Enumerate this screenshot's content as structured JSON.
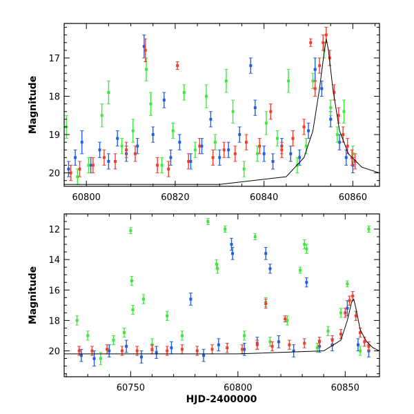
{
  "chart_data": [
    {
      "type": "scatter",
      "panel": "top",
      "xlabel": "",
      "ylabel": "Magnitude",
      "xlim": [
        60795,
        60866
      ],
      "ylim": [
        20.35,
        16.1
      ],
      "y_inverted": true,
      "x_ticks": [
        60800,
        60820,
        60840,
        60860
      ],
      "y_ticks": [
        17,
        18,
        19,
        20
      ],
      "series": [
        {
          "color": "#1f5fe0",
          "values": [
            [
              60796.0,
              19.9,
              0.2
            ],
            [
              60797.5,
              19.6,
              0.2
            ],
            [
              60799.0,
              19.2,
              0.3
            ],
            [
              60801.0,
              19.8,
              0.2
            ],
            [
              60803.0,
              19.4,
              0.2
            ],
            [
              60805.0,
              19.7,
              0.2
            ],
            [
              60807.0,
              19.1,
              0.2
            ],
            [
              60809.0,
              19.5,
              0.2
            ],
            [
              60811.5,
              19.3,
              0.2
            ],
            [
              60813.0,
              16.7,
              0.3
            ],
            [
              60815.0,
              19.0,
              0.2
            ],
            [
              60817.5,
              18.1,
              0.2
            ],
            [
              60819.0,
              19.6,
              0.2
            ],
            [
              60821.0,
              19.2,
              0.2
            ],
            [
              60823.5,
              19.7,
              0.2
            ],
            [
              60826.0,
              19.3,
              0.2
            ],
            [
              60828.0,
              18.6,
              0.2
            ],
            [
              60830.0,
              19.6,
              0.2
            ],
            [
              60832.0,
              19.4,
              0.2
            ],
            [
              60834.5,
              19.0,
              0.2
            ],
            [
              60837.0,
              17.2,
              0.2
            ],
            [
              60838.0,
              18.3,
              0.2
            ],
            [
              60840.0,
              19.5,
              0.2
            ],
            [
              60842.0,
              19.7,
              0.2
            ],
            [
              60844.0,
              19.3,
              0.2
            ],
            [
              60846.0,
              19.5,
              0.2
            ],
            [
              60848.0,
              19.6,
              0.2
            ],
            [
              60850.0,
              18.9,
              0.2
            ],
            [
              60851.5,
              17.3,
              0.3
            ],
            [
              60853.0,
              17.8,
              0.2
            ],
            [
              60855.0,
              18.6,
              0.2
            ],
            [
              60857.0,
              19.2,
              0.2
            ],
            [
              60858.5,
              19.6,
              0.2
            ],
            [
              60860.0,
              19.8,
              0.2
            ]
          ]
        },
        {
          "color": "#3ee83e",
          "values": [
            [
              60795.5,
              18.8,
              0.3
            ],
            [
              60798.0,
              20.1,
              0.2
            ],
            [
              60800.5,
              19.8,
              0.2
            ],
            [
              60803.5,
              18.5,
              0.3
            ],
            [
              60805.0,
              17.9,
              0.3
            ],
            [
              60808.0,
              19.3,
              0.2
            ],
            [
              60810.5,
              18.9,
              0.3
            ],
            [
              60813.5,
              17.3,
              0.3
            ],
            [
              60814.5,
              18.2,
              0.3
            ],
            [
              60817.0,
              19.8,
              0.2
            ],
            [
              60819.5,
              18.9,
              0.2
            ],
            [
              60822.0,
              17.9,
              0.2
            ],
            [
              60824.5,
              19.4,
              0.2
            ],
            [
              60827.0,
              18.0,
              0.3
            ],
            [
              60829.0,
              19.2,
              0.2
            ],
            [
              60831.5,
              17.6,
              0.3
            ],
            [
              60833.0,
              18.4,
              0.3
            ],
            [
              60835.5,
              19.9,
              0.2
            ],
            [
              60838.5,
              19.5,
              0.2
            ],
            [
              60840.5,
              18.7,
              0.3
            ],
            [
              60843.0,
              19.1,
              0.2
            ],
            [
              60845.5,
              17.6,
              0.3
            ],
            [
              60847.5,
              19.8,
              0.2
            ],
            [
              60849.5,
              19.3,
              0.2
            ],
            [
              60851.0,
              17.6,
              0.2
            ],
            [
              60853.5,
              16.8,
              0.2
            ],
            [
              60855.0,
              18.3,
              0.2
            ],
            [
              60856.5,
              19.0,
              0.2
            ],
            [
              60858.0,
              18.4,
              0.3
            ],
            [
              60860.0,
              19.5,
              0.2
            ]
          ]
        },
        {
          "color": "#ef3e2e",
          "values": [
            [
              60796.5,
              20.0,
              0.2
            ],
            [
              60798.5,
              19.9,
              0.2
            ],
            [
              60801.5,
              19.8,
              0.2
            ],
            [
              60804.0,
              19.6,
              0.2
            ],
            [
              60806.5,
              19.7,
              0.2
            ],
            [
              60809.0,
              19.4,
              0.2
            ],
            [
              60811.0,
              19.5,
              0.2
            ],
            [
              60813.3,
              16.8,
              0.3
            ],
            [
              60816.0,
              19.8,
              0.2
            ],
            [
              60818.5,
              19.9,
              0.2
            ],
            [
              60820.5,
              17.2,
              0.1
            ],
            [
              60823.0,
              19.7,
              0.2
            ],
            [
              60825.5,
              19.3,
              0.2
            ],
            [
              60828.5,
              19.6,
              0.2
            ],
            [
              60831.0,
              19.4,
              0.2
            ],
            [
              60833.5,
              19.5,
              0.2
            ],
            [
              60836.0,
              19.2,
              0.2
            ],
            [
              60839.0,
              19.3,
              0.2
            ],
            [
              60841.5,
              18.4,
              0.2
            ],
            [
              60844.0,
              19.4,
              0.2
            ],
            [
              60846.5,
              19.1,
              0.2
            ],
            [
              60849.0,
              18.8,
              0.2
            ],
            [
              60850.5,
              16.6,
              0.1
            ],
            [
              60851.5,
              17.8,
              0.2
            ],
            [
              60852.5,
              17.2,
              0.2
            ],
            [
              60853.3,
              16.6,
              0.2
            ],
            [
              60854.0,
              16.4,
              0.2
            ],
            [
              60854.8,
              17.0,
              0.2
            ],
            [
              60855.8,
              17.9,
              0.2
            ],
            [
              60856.8,
              18.5,
              0.2
            ],
            [
              60857.8,
              19.0,
              0.2
            ],
            [
              60858.8,
              19.3,
              0.2
            ],
            [
              60859.8,
              19.6,
              0.2
            ],
            [
              60860.5,
              19.7,
              0.2
            ]
          ]
        }
      ],
      "model_curve": {
        "color": "#000000",
        "points": [
          [
            60795,
            20.3
          ],
          [
            60830,
            20.3
          ],
          [
            60845,
            20.1
          ],
          [
            60849,
            19.6
          ],
          [
            60851,
            18.9
          ],
          [
            60852.5,
            17.8
          ],
          [
            60853.5,
            16.9
          ],
          [
            60854,
            16.5
          ],
          [
            60854.5,
            16.8
          ],
          [
            60855.5,
            17.8
          ],
          [
            60857,
            18.9
          ],
          [
            60859,
            19.5
          ],
          [
            60862,
            19.85
          ],
          [
            60866,
            20.0
          ]
        ]
      }
    },
    {
      "type": "scatter",
      "panel": "bottom",
      "xlabel": "HJD-2400000",
      "ylabel": "Magnitude",
      "xlim": [
        60719,
        60866
      ],
      "ylim": [
        21.7,
        11.0
      ],
      "y_inverted": true,
      "x_ticks": [
        60750,
        60800,
        60850
      ],
      "y_ticks": [
        12,
        14,
        16,
        18,
        20
      ],
      "series": [
        {
          "color": "#1f5fe0",
          "values": [
            [
              60727,
              20.3,
              0.4
            ],
            [
              60733,
              20.5,
              0.5
            ],
            [
              60740,
              20.0,
              0.4
            ],
            [
              60748,
              19.7,
              0.4
            ],
            [
              60755,
              20.4,
              0.4
            ],
            [
              60762,
              20.1,
              0.4
            ],
            [
              60769,
              19.8,
              0.4
            ],
            [
              60778,
              16.6,
              0.4
            ],
            [
              60784,
              20.3,
              0.4
            ],
            [
              60791,
              19.6,
              0.4
            ],
            [
              60797,
              13.0,
              0.4
            ],
            [
              60797.5,
              13.6,
              0.4
            ],
            [
              60803,
              19.9,
              0.4
            ],
            [
              60809,
              19.5,
              0.4
            ],
            [
              60813,
              13.6,
              0.4
            ],
            [
              60815,
              14.6,
              0.3
            ],
            [
              60819,
              19.4,
              0.4
            ],
            [
              60826,
              20.0,
              0.4
            ],
            [
              60832,
              15.5,
              0.3
            ],
            [
              60838,
              19.7,
              0.4
            ],
            [
              60844,
              19.6,
              0.4
            ],
            [
              60851,
              17.2,
              0.5
            ],
            [
              60856,
              19.6,
              0.4
            ],
            [
              60861,
              20.0,
              0.4
            ]
          ]
        },
        {
          "color": "#3ee83e",
          "values": [
            [
              60725,
              18.0,
              0.3
            ],
            [
              60730,
              19.0,
              0.3
            ],
            [
              60736,
              20.5,
              0.4
            ],
            [
              60742,
              19.3,
              0.3
            ],
            [
              60747,
              18.8,
              0.3
            ],
            [
              60750,
              12.1,
              0.2
            ],
            [
              60750.5,
              15.4,
              0.3
            ],
            [
              60751,
              17.3,
              0.3
            ],
            [
              60756,
              16.6,
              0.3
            ],
            [
              60760,
              19.6,
              0.4
            ],
            [
              60767,
              17.7,
              0.3
            ],
            [
              60774,
              19.0,
              0.3
            ],
            [
              60786,
              11.5,
              0.2
            ],
            [
              60790,
              14.3,
              0.3
            ],
            [
              60790.5,
              14.6,
              0.3
            ],
            [
              60794,
              12.0,
              0.2
            ],
            [
              60803,
              19.0,
              0.3
            ],
            [
              60808,
              12.5,
              0.2
            ],
            [
              60813,
              16.8,
              0.3
            ],
            [
              60815,
              19.4,
              0.3
            ],
            [
              60823,
              18.0,
              0.3
            ],
            [
              60829,
              14.7,
              0.2
            ],
            [
              60831,
              13.0,
              0.3
            ],
            [
              60832,
              13.3,
              0.3
            ],
            [
              60837,
              19.8,
              0.3
            ],
            [
              60842,
              18.7,
              0.3
            ],
            [
              60848,
              17.5,
              0.3
            ],
            [
              60851,
              15.6,
              0.2
            ],
            [
              60857,
              20.0,
              0.3
            ],
            [
              60861,
              12.0,
              0.2
            ]
          ]
        },
        {
          "color": "#ef3e2e",
          "values": [
            [
              60726,
              20.0,
              0.3
            ],
            [
              60732,
              20.0,
              0.3
            ],
            [
              60739,
              19.9,
              0.3
            ],
            [
              60746,
              20.0,
              0.3
            ],
            [
              60753,
              20.0,
              0.3
            ],
            [
              60760,
              19.9,
              0.3
            ],
            [
              60767,
              20.0,
              0.3
            ],
            [
              60774,
              19.9,
              0.3
            ],
            [
              60781,
              20.0,
              0.3
            ],
            [
              60788,
              19.9,
              0.3
            ],
            [
              60795,
              19.8,
              0.3
            ],
            [
              60802,
              19.9,
              0.3
            ],
            [
              60809,
              19.6,
              0.3
            ],
            [
              60813,
              16.9,
              0.3
            ],
            [
              60816,
              19.7,
              0.3
            ],
            [
              60822,
              17.9,
              0.2
            ],
            [
              60824,
              19.6,
              0.3
            ],
            [
              60831,
              19.5,
              0.3
            ],
            [
              60838,
              19.4,
              0.3
            ],
            [
              60844,
              19.3,
              0.3
            ],
            [
              60848,
              18.9,
              0.3
            ],
            [
              60850,
              17.5,
              0.3
            ],
            [
              60852,
              16.7,
              0.3
            ],
            [
              60853.5,
              16.4,
              0.3
            ],
            [
              60855,
              17.7,
              0.3
            ],
            [
              60857,
              18.8,
              0.3
            ],
            [
              60859,
              19.4,
              0.3
            ],
            [
              60861,
              19.7,
              0.3
            ]
          ]
        }
      ],
      "model_curve": {
        "color": "#000000",
        "points": [
          [
            60719,
            20.2
          ],
          [
            60800,
            20.2
          ],
          [
            60840,
            20.0
          ],
          [
            60848,
            19.3
          ],
          [
            60851,
            18.0
          ],
          [
            60853,
            16.8
          ],
          [
            60854,
            16.6
          ],
          [
            60855,
            17.2
          ],
          [
            60857,
            18.6
          ],
          [
            60860,
            19.4
          ],
          [
            60863,
            19.8
          ],
          [
            60866,
            20.0
          ]
        ]
      }
    }
  ]
}
